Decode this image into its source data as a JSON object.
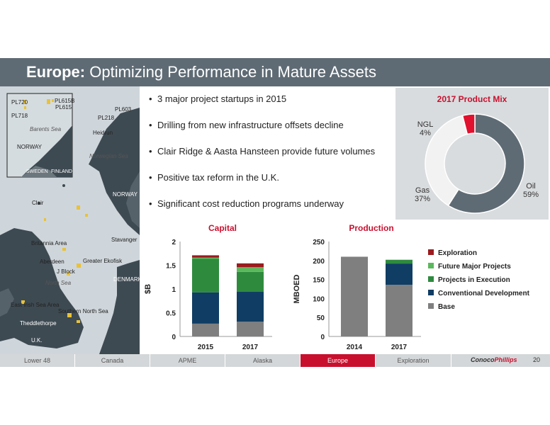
{
  "title": {
    "bold": "Europe:",
    "rest": " Optimizing Performance in Mature Assets"
  },
  "bullets": [
    "3 major project startups in 2015",
    "Drilling from new infrastructure offsets decline",
    "Clair Ridge & Aasta Hansteen provide future volumes",
    "Positive tax reform in the U.K.",
    "Significant cost reduction programs underway"
  ],
  "map_labels": {
    "pl720": "PL720",
    "pl615b": "PL615B",
    "pl615": "PL615",
    "pl718": "PL718",
    "pl603": "PL603",
    "pl218": "PL218",
    "heidrun": "Heidrun",
    "barents": "Barents Sea",
    "norway_inset": "NORWAY",
    "sweden": "SWEDEN",
    "finland": "FINLAND",
    "norwegian_sea": "Norwegian Sea",
    "norway": "NORWAY",
    "clair": "Clair",
    "britannia": "Britannia Area",
    "stavanger": "Stavanger",
    "aberdeen": "Aberdeen",
    "greater_ekofisk": "Greater Ekofisk",
    "jblock": "J Block",
    "north_sea": "North Sea",
    "denmark": "DENMARK",
    "east_irish": "East Irish Sea Area",
    "southern_north": "Southern North Sea",
    "theddlethorpe": "Theddlethorpe",
    "uk": "U.K."
  },
  "nav": {
    "tabs": [
      "Lower 48",
      "Canada",
      "APME",
      "Alaska",
      "Europe",
      "Exploration"
    ],
    "active": "Europe",
    "logo_a": "Conoco",
    "logo_b": "Phillips",
    "page": "20"
  },
  "colors": {
    "exploration": "#9b1b1e",
    "future": "#5cb85c",
    "execution": "#2e8b3e",
    "conventional": "#0f3d63",
    "base": "#7f7f7f",
    "oil": "#5f6b74",
    "gas": "#f2f2f2",
    "ngl": "#e0102e",
    "title_red": "#c8102e"
  },
  "chart_data": [
    {
      "type": "pie",
      "title": "2017 Product Mix",
      "slices": [
        {
          "name": "Oil",
          "value": 59
        },
        {
          "name": "Gas",
          "value": 37
        },
        {
          "name": "NGL",
          "value": 4
        }
      ],
      "labels": {
        "oil": "Oil",
        "oil_pct": "59%",
        "gas": "Gas",
        "gas_pct": "37%",
        "ngl": "NGL",
        "ngl_pct": "4%"
      }
    },
    {
      "type": "bar",
      "title": "Capital",
      "ylabel": "$B",
      "categories": [
        "2015",
        "2017"
      ],
      "ylim": [
        0,
        2
      ],
      "yticks": [
        "0",
        "0.5",
        "1",
        "1.5",
        "2"
      ],
      "series": [
        {
          "name": "Base",
          "values": [
            0.27,
            0.31
          ]
        },
        {
          "name": "Conventional Development",
          "values": [
            0.66,
            0.63
          ]
        },
        {
          "name": "Projects in Execution",
          "values": [
            0.71,
            0.42
          ]
        },
        {
          "name": "Future Major Projects",
          "values": [
            0.02,
            0.1
          ]
        },
        {
          "name": "Exploration",
          "values": [
            0.05,
            0.08
          ]
        }
      ]
    },
    {
      "type": "bar",
      "title": "Production",
      "ylabel": "MBOED",
      "categories": [
        "2014",
        "2017"
      ],
      "ylim": [
        0,
        250
      ],
      "yticks": [
        "0",
        "50",
        "100",
        "150",
        "200",
        "250"
      ],
      "series": [
        {
          "name": "Base",
          "values": [
            210,
            136
          ]
        },
        {
          "name": "Conventional Development",
          "values": [
            0,
            56
          ]
        },
        {
          "name": "Projects in Execution",
          "values": [
            0,
            10
          ]
        },
        {
          "name": "Future Major Projects",
          "values": [
            0,
            0
          ]
        },
        {
          "name": "Exploration",
          "values": [
            0,
            0
          ]
        }
      ]
    }
  ],
  "legend": [
    "Exploration",
    "Future Major Projects",
    "Projects in Execution",
    "Conventional Development",
    "Base"
  ]
}
